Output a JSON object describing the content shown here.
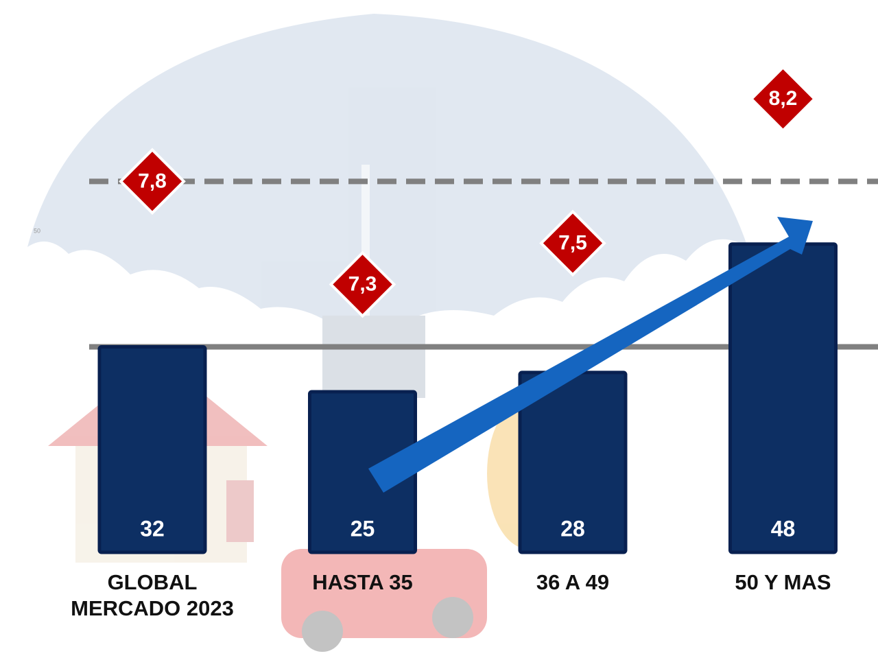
{
  "chart_data": {
    "type": "bar",
    "categories": [
      "GLOBAL\nMERCADO 2023",
      "HASTA 35",
      "36 A 49",
      "50 Y MAS"
    ],
    "series": [
      {
        "type": "bar",
        "color": "#0d2f63",
        "values": [
          32,
          25,
          28,
          48
        ]
      },
      {
        "type": "diamond",
        "axis": "y2",
        "color": "#c00000",
        "values": [
          7.8,
          7.3,
          7.5,
          8.2
        ],
        "value_labels": [
          "7,8",
          "7,3",
          "7,5",
          "8,2"
        ]
      }
    ],
    "ylim": [
      0,
      86
    ],
    "yticks": [
      50
    ],
    "y2lim": [
      6.0,
      8.68
    ]
  }
}
